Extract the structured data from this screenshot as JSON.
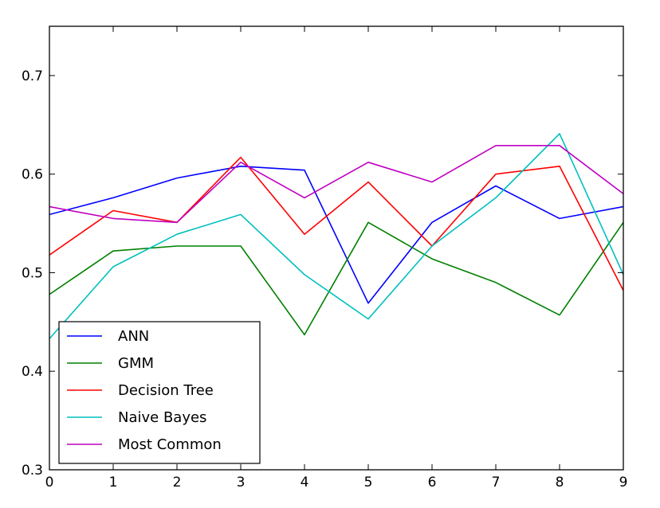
{
  "chart_data": {
    "type": "line",
    "title": "",
    "xlabel": "",
    "ylabel": "",
    "x": [
      0,
      1,
      2,
      3,
      4,
      5,
      6,
      7,
      8,
      9
    ],
    "xlim": [
      0,
      9
    ],
    "ylim": [
      0.3,
      0.75
    ],
    "x_ticks": [
      "0",
      "1",
      "2",
      "3",
      "4",
      "5",
      "6",
      "7",
      "8",
      "9"
    ],
    "y_ticks": [
      "0.3",
      "0.4",
      "0.5",
      "0.6",
      "0.7"
    ],
    "grid": false,
    "legend_position": "lower-left",
    "series": [
      {
        "name": "ANN",
        "color": "#0000ff",
        "values": [
          0.559,
          0.576,
          0.596,
          0.608,
          0.604,
          0.469,
          0.551,
          0.588,
          0.555,
          0.567
        ]
      },
      {
        "name": "GMM",
        "color": "#008000",
        "values": [
          0.478,
          0.522,
          0.527,
          0.527,
          0.437,
          0.551,
          0.514,
          0.49,
          0.457,
          0.551
        ]
      },
      {
        "name": "Decision Tree",
        "color": "#ff0000",
        "values": [
          0.518,
          0.563,
          0.551,
          0.617,
          0.539,
          0.592,
          0.527,
          0.6,
          0.608,
          0.482
        ]
      },
      {
        "name": "Naive Bayes",
        "color": "#00bfbf",
        "values": [
          0.433,
          0.506,
          0.539,
          0.559,
          0.498,
          0.453,
          0.527,
          0.576,
          0.641,
          0.498
        ]
      },
      {
        "name": "Most Common",
        "color": "#bf00bf",
        "values": [
          0.567,
          0.555,
          0.551,
          0.612,
          0.576,
          0.612,
          0.592,
          0.629,
          0.629,
          0.58
        ]
      }
    ]
  }
}
